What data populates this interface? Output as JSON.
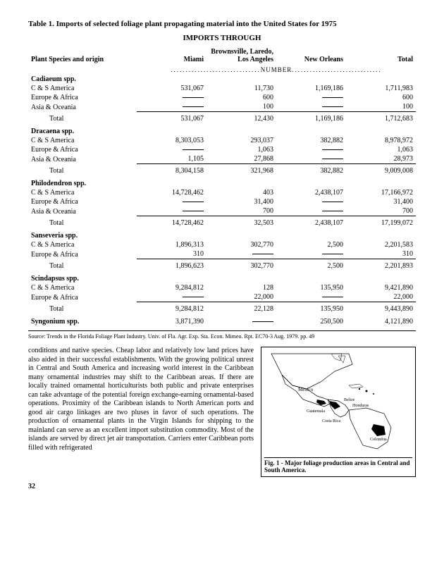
{
  "table_title": "Table 1. Imports of selected foliage plant propagating material into the United States for 1975",
  "imports_heading": "IMPORTS THROUGH",
  "col_headers": {
    "species": "Plant Species and origin",
    "miami": "Miami",
    "blla": "Brownsville, Laredo, Los Angeles",
    "neworleans": "New Orleans",
    "total": "Total"
  },
  "number_label": "NUMBER",
  "groups": [
    {
      "name": "Cadiaeum spp.",
      "rows": [
        {
          "label": "C & S America",
          "cols": [
            "531,067",
            "11,730",
            "1,169,186",
            "1,711,983"
          ]
        },
        {
          "label": "Europe & Africa",
          "cols": [
            "—",
            "600",
            "—",
            "600"
          ]
        },
        {
          "label": "Asia & Oceania",
          "cols": [
            "—",
            "100",
            "—",
            "100"
          ]
        }
      ],
      "total": [
        "531,067",
        "12,430",
        "1,169,186",
        "1,712,683"
      ]
    },
    {
      "name": "Dracaena spp.",
      "rows": [
        {
          "label": "C & S America",
          "cols": [
            "8,303,053",
            "293,037",
            "382,882",
            "8,978,972"
          ]
        },
        {
          "label": "Europe & Africa",
          "cols": [
            "—",
            "1,063",
            "—",
            "1,063"
          ]
        },
        {
          "label": "Asia & Oceania",
          "cols": [
            "1,105",
            "27,868",
            "—",
            "28,973"
          ]
        }
      ],
      "total": [
        "8,304,158",
        "321,968",
        "382,882",
        "9,009,008"
      ]
    },
    {
      "name": "Philodendron spp.",
      "rows": [
        {
          "label": "C & S America",
          "cols": [
            "14,728,462",
            "403",
            "2,438,107",
            "17,166,972"
          ]
        },
        {
          "label": "Europe & Africa",
          "cols": [
            "—",
            "31,400",
            "—",
            "31,400"
          ]
        },
        {
          "label": "Asia & Oceania",
          "cols": [
            "—",
            "700",
            "—",
            "700"
          ]
        }
      ],
      "total": [
        "14,728,462",
        "32,503",
        "2,438,107",
        "17,199,072"
      ]
    },
    {
      "name": "Sanseveria spp.",
      "rows": [
        {
          "label": "C & S America",
          "cols": [
            "1,896,313",
            "302,770",
            "2,500",
            "2,201,583"
          ]
        },
        {
          "label": "Europe & Africa",
          "cols": [
            "310",
            "—",
            "—",
            "310"
          ]
        }
      ],
      "total": [
        "1,896,623",
        "302,770",
        "2,500",
        "2,201,893"
      ]
    },
    {
      "name": "Scindapsus spp.",
      "rows": [
        {
          "label": "C & S America",
          "cols": [
            "9,284,812",
            "128",
            "135,950",
            "9,421,890"
          ]
        },
        {
          "label": "Europe & Africa",
          "cols": [
            "—",
            "22,000",
            "—",
            "22,000"
          ]
        }
      ],
      "total": [
        "9,284,812",
        "22,128",
        "135,950",
        "9,443,890"
      ]
    }
  ],
  "syngonium": {
    "label": "Syngonium spp.",
    "cols": [
      "3,871,390",
      "—",
      "250,500",
      "4,121,890"
    ]
  },
  "total_label": "Total",
  "source": "Source: Trends in the Florida Foliage Plant Industry. Univ. of Fla. Agr. Exp. Sta. Econ. Mimeo. Rpt. EC70-3 Aug. 1979. pp. 49",
  "body_text": "conditions and native species. Cheap labor and relatively low land prices have also aided in their successful establishments. With the growing political unrest in Central and South America and increasing world interest in the Caribbean many ornamental industries may shift to the Caribbean areas. If there are locally trained ornamental horticulturists both public and private enterprises can take advantage of the potential foreign exchange-earning ornamental-based operations. Proximity of the Caribbean islands to North American ports and good air cargo linkages are two pluses in favor of such operations. The production of ornamental plants in the Virgin Islands for shipping to the mainland can serve as an excellent import substitution commodity. Most of the islands are served by direct jet air transportation. Carriers enter Caribbean ports filled with refrigerated",
  "map_labels": {
    "mexico": "Mexico",
    "belize": "Belize",
    "honduras": "Honduras",
    "guatemala": "Guatemala",
    "costarica": "Costa Rica",
    "colombia": "Colombia"
  },
  "map_caption": "Fig. 1 - Major foliage production areas in Central and South America.",
  "page_number": "32"
}
